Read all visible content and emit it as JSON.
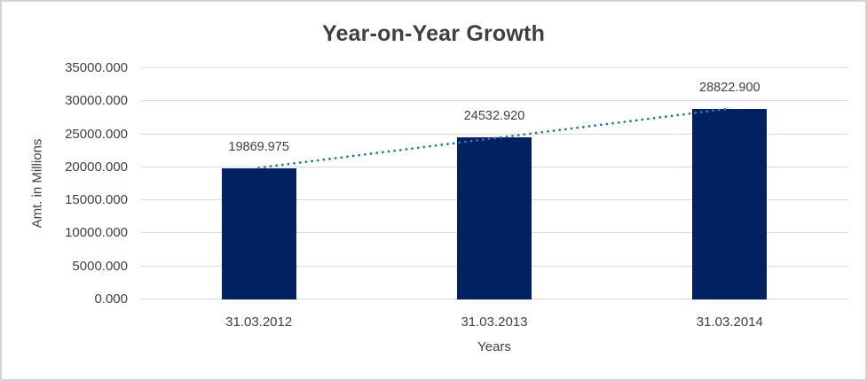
{
  "chart_data": {
    "type": "bar",
    "title": "Year-on-Year Growth",
    "xlabel": "Years",
    "ylabel": "Amt. in Millions",
    "categories": [
      "31.03.2012",
      "31.03.2013",
      "31.03.2014"
    ],
    "values": [
      19869.975,
      24532.92,
      28822.9
    ],
    "data_labels": [
      "19869.975",
      "24532.920",
      "28822.900"
    ],
    "ylim": [
      0,
      35000
    ],
    "ytick_step": 5000,
    "ytick_labels": [
      "0.000",
      "5000.000",
      "10000.000",
      "15000.000",
      "20000.000",
      "25000.000",
      "30000.000",
      "35000.000"
    ],
    "grid": true,
    "legend": "none",
    "trendline": "linear-dotted",
    "colors": {
      "bar": "#022161",
      "trendline": "#2e75b6",
      "gridline": "#d9d9d9",
      "text": "#404040",
      "title_text": "#3f3f3f",
      "frame_border": "#d4d4d4",
      "background": "#ffffff"
    }
  }
}
